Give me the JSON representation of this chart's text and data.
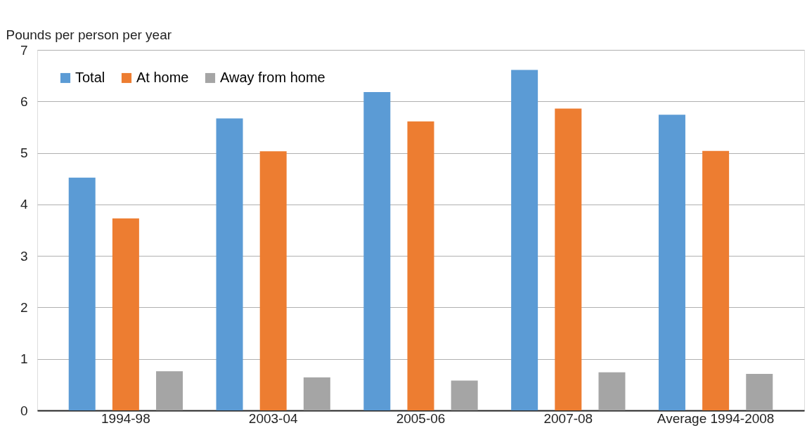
{
  "chart_data": {
    "type": "bar",
    "ylabel": "Pounds per person per year",
    "categories": [
      "1994-98",
      "2003-04",
      "2005-06",
      "2007-08",
      "Average 1994-2008"
    ],
    "series": [
      {
        "name": "Total",
        "color": "#5b9bd5",
        "values": [
          4.52,
          5.67,
          6.18,
          6.61,
          5.74
        ]
      },
      {
        "name": "At home",
        "color": "#ed7d31",
        "values": [
          3.73,
          5.03,
          5.61,
          5.86,
          5.04
        ]
      },
      {
        "name": "Away from home",
        "color": "#a5a5a5",
        "values": [
          0.76,
          0.64,
          0.58,
          0.74,
          0.71
        ]
      }
    ],
    "ylim": [
      0,
      7
    ],
    "yticks": [
      0,
      1,
      2,
      3,
      4,
      5,
      6,
      7
    ],
    "grid": "y",
    "legend": "top left"
  }
}
